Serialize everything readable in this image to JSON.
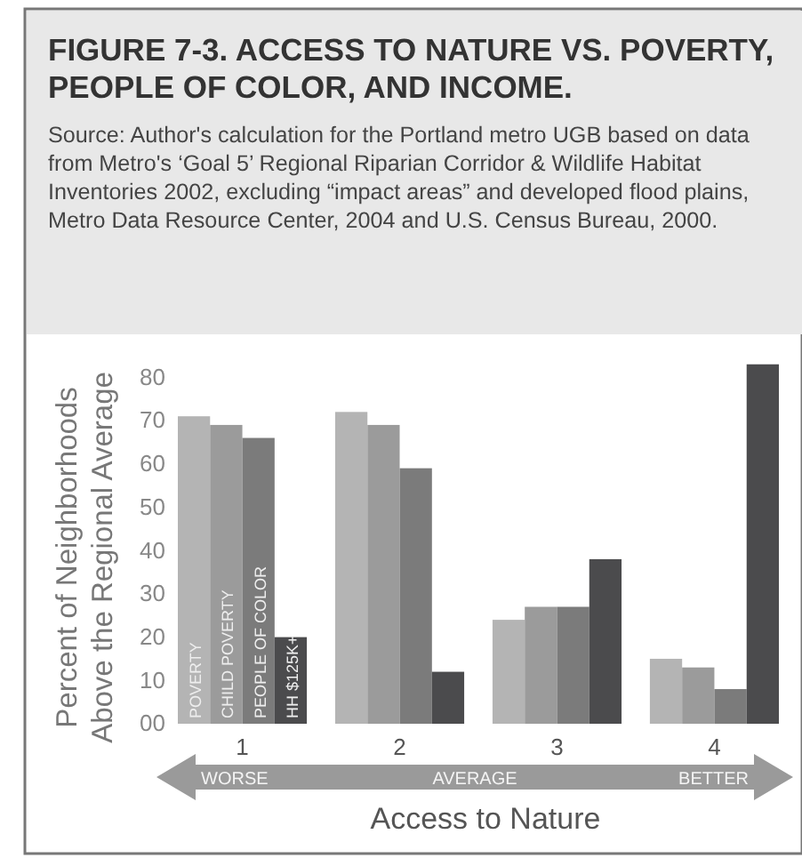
{
  "chart_data": {
    "type": "bar",
    "title": "FIGURE 7-3. ACCESS TO NATURE VS. POVERTY, PEOPLE OF COLOR, AND INCOME.",
    "subtitle": "Source: Author's calculation for the Portland metro UGB based on data from Metro's ‘Goal 5’ Regional Riparian Corridor & Wildlife Habitat Inventories 2002, excluding “impact areas” and developed flood plains, Metro Data Resource Center, 2004 and U.S. Census Bureau, 2000.",
    "xlabel": "Access to Nature",
    "ylabel": "Percent of Neighborhoods\nAbove the Regional Average",
    "annotations": [
      "WORSE",
      "AVERAGE",
      "BETTER"
    ],
    "categories": [
      "1",
      "2",
      "3",
      "4"
    ],
    "series": [
      {
        "name": "POVERTY",
        "color": "#b4b4b4",
        "values": [
          71,
          72,
          24,
          15
        ]
      },
      {
        "name": "CHILD POVERTY",
        "color": "#9b9b9b",
        "values": [
          69,
          69,
          27,
          13
        ]
      },
      {
        "name": "PEOPLE OF COLOR",
        "color": "#7b7b7b",
        "values": [
          66,
          59,
          27,
          8
        ]
      },
      {
        "name": "HH $125K+",
        "color": "#4b4b4d",
        "values": [
          20,
          12,
          38,
          83
        ]
      }
    ],
    "ylim": [
      0,
      85
    ],
    "yticks": [
      {
        "value": 0,
        "label": "00"
      },
      10,
      20,
      30,
      40,
      50,
      60,
      70,
      80
    ],
    "grid": false
  }
}
